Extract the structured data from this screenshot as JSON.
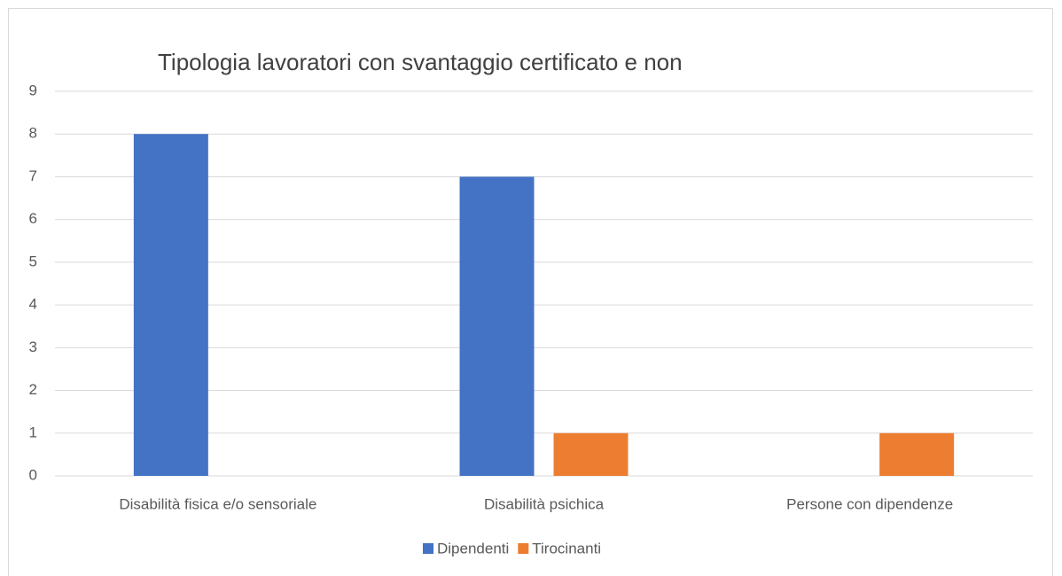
{
  "chart_data": {
    "type": "bar",
    "title": "Tipologia lavoratori con svantaggio certificato e non",
    "categories": [
      "Disabilità fisica e/o sensoriale",
      "Disabilità psichica",
      "Persone con dipendenze"
    ],
    "series": [
      {
        "name": "Dipendenti",
        "color": "#4472c4",
        "values": [
          8,
          7,
          0
        ]
      },
      {
        "name": "Tirocinanti",
        "color": "#ed7d31",
        "values": [
          0,
          1,
          1
        ]
      }
    ],
    "ylim": [
      0,
      9
    ],
    "yticks": [
      0,
      1,
      2,
      3,
      4,
      5,
      6,
      7,
      8,
      9
    ],
    "grid": true,
    "legend": "bottom"
  }
}
